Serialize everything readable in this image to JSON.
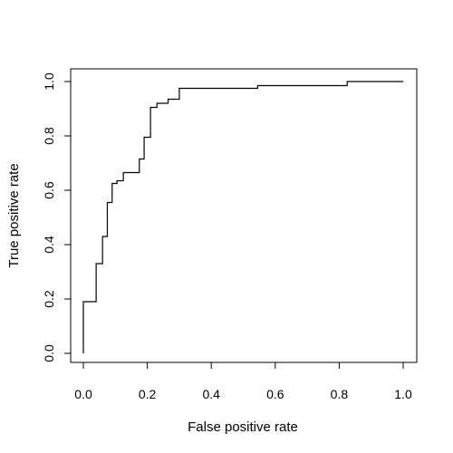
{
  "chart_data": {
    "type": "line",
    "title": "",
    "xlabel": "False positive rate",
    "ylabel": "True positive rate",
    "xlim": [
      0,
      1
    ],
    "ylim": [
      0,
      1
    ],
    "xticks": [
      "0.0",
      "0.2",
      "0.4",
      "0.6",
      "0.8",
      "1.0"
    ],
    "yticks": [
      "0.0",
      "0.2",
      "0.4",
      "0.6",
      "0.8",
      "1.0"
    ],
    "grid": false,
    "line_color": "#000000",
    "series": [
      {
        "step": true,
        "x": [
          0,
          0,
          0.04,
          0.04,
          0.06,
          0.06,
          0.075,
          0.075,
          0.09,
          0.09,
          0.105,
          0.105,
          0.125,
          0.125,
          0.175,
          0.175,
          0.19,
          0.19,
          0.21,
          0.21,
          0.23,
          0.23,
          0.265,
          0.265,
          0.3,
          0.3,
          0.545,
          0.545,
          0.825,
          0.825,
          1.0
        ],
        "y": [
          0,
          0.19,
          0.19,
          0.33,
          0.33,
          0.43,
          0.43,
          0.555,
          0.555,
          0.625,
          0.625,
          0.635,
          0.635,
          0.665,
          0.665,
          0.715,
          0.715,
          0.795,
          0.795,
          0.905,
          0.905,
          0.92,
          0.92,
          0.935,
          0.935,
          0.975,
          0.975,
          0.985,
          0.985,
          1.0,
          1.0
        ]
      }
    ]
  }
}
